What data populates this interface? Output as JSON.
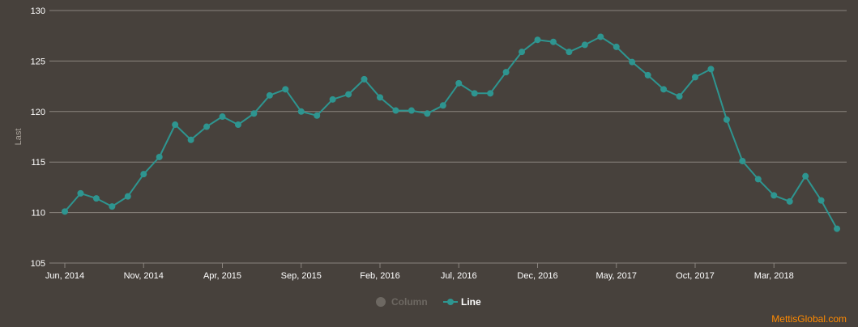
{
  "credit": "MettisGlobal.com",
  "colors": {
    "background": "#47413c",
    "grid": "#8a847e",
    "series": "#2e9590",
    "legend_inactive": "#6d6862",
    "axis_title": "#aaa39b",
    "credit": "#ff8a00"
  },
  "legend": [
    {
      "name": "Column",
      "active": false
    },
    {
      "name": "Line",
      "active": true
    }
  ],
  "chart_data": {
    "type": "line",
    "ylabel": "Last",
    "xlabel": "",
    "title": "",
    "ylim": [
      105,
      130
    ],
    "yticks": [
      105,
      110,
      115,
      120,
      125,
      130
    ],
    "grid": true,
    "legend_position": "bottom-center",
    "x_tick_labels": [
      {
        "label": "Jun, 2014",
        "index": 0
      },
      {
        "label": "Nov, 2014",
        "index": 5
      },
      {
        "label": "Apr, 2015",
        "index": 10
      },
      {
        "label": "Sep, 2015",
        "index": 15
      },
      {
        "label": "Feb, 2016",
        "index": 20
      },
      {
        "label": "Jul, 2016",
        "index": 25
      },
      {
        "label": "Dec, 2016",
        "index": 30
      },
      {
        "label": "May, 2017",
        "index": 35
      },
      {
        "label": "Oct, 2017",
        "index": 40
      },
      {
        "label": "Mar, 2018",
        "index": 45
      }
    ],
    "series": [
      {
        "name": "Line",
        "values": [
          110.1,
          111.9,
          111.4,
          110.6,
          111.6,
          113.8,
          115.5,
          118.7,
          117.2,
          118.5,
          119.5,
          118.7,
          119.8,
          121.6,
          122.2,
          120.0,
          119.6,
          121.2,
          121.7,
          123.2,
          121.4,
          120.1,
          120.1,
          119.8,
          120.6,
          122.8,
          121.8,
          121.8,
          123.9,
          125.9,
          127.1,
          126.9,
          125.9,
          126.6,
          127.4,
          126.4,
          124.9,
          123.6,
          122.2,
          121.5,
          123.4,
          124.2,
          119.2,
          115.1,
          113.3,
          111.7,
          111.1,
          113.6,
          111.2,
          108.4
        ]
      }
    ]
  }
}
